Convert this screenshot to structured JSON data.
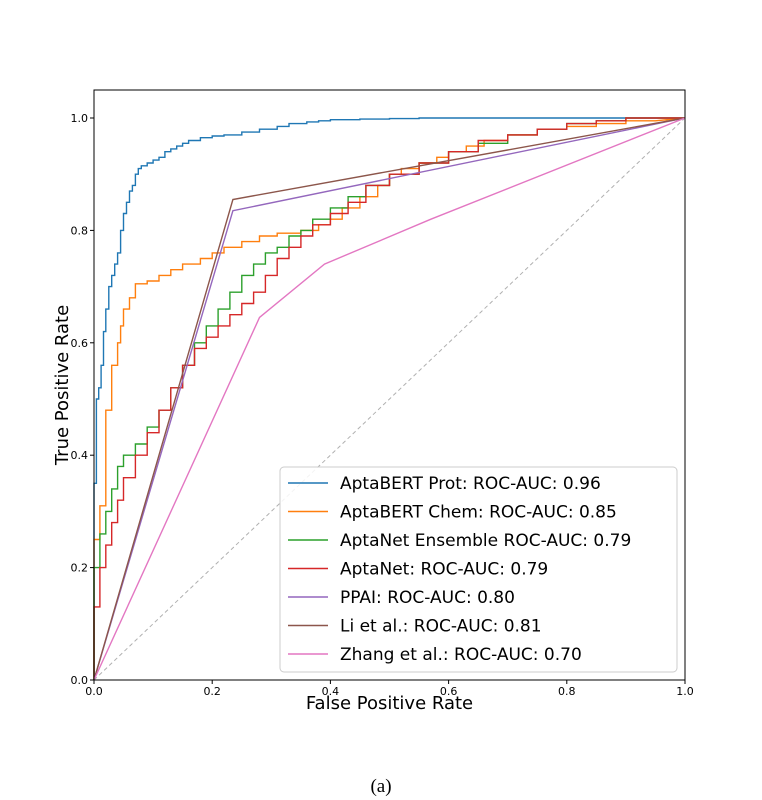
{
  "caption": "(a)",
  "chart_data": {
    "type": "line",
    "title": "",
    "xlabel": "False Positive Rate",
    "ylabel": "True Positive Rate",
    "xlim": [
      0.0,
      1.0
    ],
    "ylim": [
      0.0,
      1.0
    ],
    "xticks": [
      0.0,
      0.2,
      0.4,
      0.6,
      0.8,
      1.0
    ],
    "yticks": [
      0.0,
      0.2,
      0.4,
      0.6,
      0.8,
      1.0
    ],
    "xtick_labels": [
      "0.0",
      "0.2",
      "0.4",
      "0.6",
      "0.8",
      "1.0"
    ],
    "ytick_labels": [
      "0.0",
      "0.2",
      "0.4",
      "0.6",
      "0.8",
      "1.0"
    ],
    "grid": false,
    "legend_position": "bottom-right",
    "diagonal": {
      "name": "chance",
      "color": "#b0b0b0",
      "dashed": true,
      "x": [
        0,
        1
      ],
      "y": [
        0,
        1
      ]
    },
    "series": [
      {
        "name": "AptaBERT Prot: ROC-AUC: 0.96",
        "color": "#1f77b4",
        "x": [
          0,
          0,
          0.004,
          0.004,
          0.008,
          0.008,
          0.012,
          0.012,
          0.016,
          0.016,
          0.02,
          0.02,
          0.025,
          0.025,
          0.03,
          0.03,
          0.035,
          0.035,
          0.04,
          0.04,
          0.045,
          0.045,
          0.05,
          0.05,
          0.055,
          0.055,
          0.06,
          0.06,
          0.065,
          0.065,
          0.07,
          0.07,
          0.075,
          0.075,
          0.08,
          0.08,
          0.09,
          0.09,
          0.1,
          0.1,
          0.11,
          0.11,
          0.12,
          0.12,
          0.13,
          0.13,
          0.14,
          0.14,
          0.15,
          0.15,
          0.16,
          0.16,
          0.18,
          0.18,
          0.2,
          0.2,
          0.22,
          0.22,
          0.25,
          0.25,
          0.28,
          0.28,
          0.31,
          0.31,
          0.33,
          0.33,
          0.36,
          0.36,
          0.38,
          0.38,
          0.4,
          0.4,
          0.45,
          0.45,
          0.5,
          0.5,
          0.55,
          0.55,
          0.6,
          0.6,
          0.7,
          0.7,
          0.8,
          0.8,
          0.9,
          0.9,
          1.0
        ],
        "y": [
          0,
          0.35,
          0.35,
          0.5,
          0.5,
          0.52,
          0.52,
          0.56,
          0.56,
          0.62,
          0.62,
          0.66,
          0.66,
          0.7,
          0.7,
          0.72,
          0.72,
          0.74,
          0.74,
          0.76,
          0.76,
          0.8,
          0.8,
          0.83,
          0.83,
          0.85,
          0.85,
          0.87,
          0.87,
          0.88,
          0.88,
          0.9,
          0.9,
          0.91,
          0.91,
          0.915,
          0.915,
          0.92,
          0.92,
          0.925,
          0.925,
          0.93,
          0.93,
          0.94,
          0.94,
          0.945,
          0.945,
          0.95,
          0.95,
          0.955,
          0.955,
          0.96,
          0.96,
          0.965,
          0.965,
          0.968,
          0.968,
          0.97,
          0.97,
          0.975,
          0.975,
          0.98,
          0.98,
          0.985,
          0.985,
          0.99,
          0.99,
          0.993,
          0.993,
          0.995,
          0.995,
          0.997,
          0.997,
          0.998,
          0.998,
          0.999,
          0.999,
          1.0,
          1.0,
          1.0,
          1.0,
          1.0,
          1.0,
          1.0,
          1.0,
          1.0,
          1.0
        ]
      },
      {
        "name": "AptaBERT Chem: ROC-AUC: 0.85",
        "color": "#ff7f0e",
        "x": [
          0,
          0,
          0.01,
          0.01,
          0.02,
          0.02,
          0.03,
          0.03,
          0.04,
          0.04,
          0.045,
          0.045,
          0.05,
          0.05,
          0.06,
          0.06,
          0.07,
          0.07,
          0.09,
          0.09,
          0.11,
          0.11,
          0.13,
          0.13,
          0.15,
          0.15,
          0.18,
          0.18,
          0.2,
          0.2,
          0.22,
          0.22,
          0.25,
          0.25,
          0.28,
          0.28,
          0.31,
          0.31,
          0.35,
          0.35,
          0.38,
          0.38,
          0.4,
          0.4,
          0.42,
          0.42,
          0.45,
          0.45,
          0.48,
          0.48,
          0.5,
          0.5,
          0.52,
          0.52,
          0.55,
          0.55,
          0.58,
          0.58,
          0.6,
          0.6,
          0.63,
          0.63,
          0.66,
          0.66,
          0.7,
          0.7,
          0.75,
          0.75,
          0.8,
          0.8,
          0.85,
          0.85,
          0.9,
          0.9,
          0.95,
          1.0
        ],
        "y": [
          0,
          0.25,
          0.25,
          0.31,
          0.31,
          0.48,
          0.48,
          0.56,
          0.56,
          0.6,
          0.6,
          0.63,
          0.63,
          0.66,
          0.66,
          0.68,
          0.68,
          0.705,
          0.705,
          0.71,
          0.71,
          0.72,
          0.72,
          0.73,
          0.73,
          0.74,
          0.74,
          0.75,
          0.75,
          0.76,
          0.76,
          0.77,
          0.77,
          0.78,
          0.78,
          0.79,
          0.79,
          0.795,
          0.795,
          0.8,
          0.8,
          0.81,
          0.81,
          0.82,
          0.82,
          0.84,
          0.84,
          0.86,
          0.86,
          0.88,
          0.88,
          0.9,
          0.9,
          0.91,
          0.91,
          0.92,
          0.92,
          0.93,
          0.93,
          0.94,
          0.94,
          0.95,
          0.95,
          0.96,
          0.96,
          0.97,
          0.97,
          0.98,
          0.98,
          0.985,
          0.985,
          0.99,
          0.99,
          0.995,
          0.995,
          1.0
        ]
      },
      {
        "name": "AptaNet Ensemble ROC-AUC: 0.79",
        "color": "#2ca02c",
        "x": [
          0,
          0,
          0.01,
          0.01,
          0.02,
          0.02,
          0.03,
          0.03,
          0.04,
          0.04,
          0.05,
          0.05,
          0.07,
          0.07,
          0.09,
          0.09,
          0.11,
          0.11,
          0.13,
          0.13,
          0.15,
          0.15,
          0.17,
          0.17,
          0.19,
          0.19,
          0.21,
          0.21,
          0.23,
          0.23,
          0.25,
          0.25,
          0.27,
          0.27,
          0.29,
          0.29,
          0.31,
          0.31,
          0.33,
          0.33,
          0.35,
          0.35,
          0.37,
          0.37,
          0.4,
          0.4,
          0.43,
          0.43,
          0.46,
          0.46,
          0.5,
          0.5,
          0.55,
          0.55,
          0.6,
          0.6,
          0.65,
          0.65,
          0.7,
          0.7,
          0.75,
          0.75,
          0.8,
          0.8,
          0.85,
          0.85,
          0.9,
          0.9,
          0.95,
          0.95,
          1.0
        ],
        "y": [
          0,
          0.2,
          0.2,
          0.26,
          0.26,
          0.3,
          0.3,
          0.34,
          0.34,
          0.38,
          0.38,
          0.4,
          0.4,
          0.42,
          0.42,
          0.45,
          0.45,
          0.48,
          0.48,
          0.52,
          0.52,
          0.56,
          0.56,
          0.6,
          0.6,
          0.63,
          0.63,
          0.66,
          0.66,
          0.69,
          0.69,
          0.72,
          0.72,
          0.74,
          0.74,
          0.76,
          0.76,
          0.77,
          0.77,
          0.79,
          0.79,
          0.8,
          0.8,
          0.82,
          0.82,
          0.84,
          0.84,
          0.86,
          0.86,
          0.88,
          0.88,
          0.9,
          0.9,
          0.92,
          0.92,
          0.94,
          0.94,
          0.955,
          0.955,
          0.97,
          0.97,
          0.98,
          0.98,
          0.99,
          0.99,
          0.995,
          0.995,
          1.0,
          1.0,
          1.0,
          1.0
        ]
      },
      {
        "name": "AptaNet: ROC-AUC: 0.79",
        "color": "#d62728",
        "x": [
          0,
          0,
          0.01,
          0.01,
          0.02,
          0.02,
          0.03,
          0.03,
          0.04,
          0.04,
          0.05,
          0.05,
          0.07,
          0.07,
          0.09,
          0.09,
          0.11,
          0.11,
          0.13,
          0.13,
          0.15,
          0.15,
          0.17,
          0.17,
          0.19,
          0.19,
          0.21,
          0.21,
          0.23,
          0.23,
          0.25,
          0.25,
          0.27,
          0.27,
          0.29,
          0.29,
          0.31,
          0.31,
          0.33,
          0.33,
          0.35,
          0.35,
          0.37,
          0.37,
          0.4,
          0.4,
          0.43,
          0.43,
          0.46,
          0.46,
          0.5,
          0.5,
          0.55,
          0.55,
          0.6,
          0.6,
          0.65,
          0.65,
          0.7,
          0.7,
          0.75,
          0.75,
          0.8,
          0.8,
          0.85,
          0.85,
          0.9,
          0.9,
          0.95,
          0.95,
          1.0
        ],
        "y": [
          0,
          0.13,
          0.13,
          0.2,
          0.2,
          0.24,
          0.24,
          0.28,
          0.28,
          0.32,
          0.32,
          0.36,
          0.36,
          0.4,
          0.4,
          0.44,
          0.44,
          0.48,
          0.48,
          0.52,
          0.52,
          0.56,
          0.56,
          0.59,
          0.59,
          0.61,
          0.61,
          0.63,
          0.63,
          0.65,
          0.65,
          0.67,
          0.67,
          0.69,
          0.69,
          0.72,
          0.72,
          0.75,
          0.75,
          0.77,
          0.77,
          0.79,
          0.79,
          0.81,
          0.81,
          0.83,
          0.83,
          0.85,
          0.85,
          0.88,
          0.88,
          0.9,
          0.9,
          0.92,
          0.92,
          0.94,
          0.94,
          0.96,
          0.96,
          0.97,
          0.97,
          0.98,
          0.98,
          0.99,
          0.99,
          0.995,
          0.995,
          1.0,
          1.0,
          1.0,
          1.0
        ]
      },
      {
        "name": "PPAI: ROC-AUC: 0.80",
        "color": "#9467bd",
        "x": [
          0,
          0.235,
          1.0
        ],
        "y": [
          0,
          0.835,
          1.0
        ]
      },
      {
        "name": "Li et al.: ROC-AUC: 0.81",
        "color": "#8c564b",
        "x": [
          0,
          0.235,
          1.0
        ],
        "y": [
          0,
          0.855,
          1.0
        ]
      },
      {
        "name": "Zhang et al.: ROC-AUC: 0.70",
        "color": "#e377c2",
        "x": [
          0,
          0.28,
          0.39,
          0.57,
          1.0
        ],
        "y": [
          0,
          0.645,
          0.74,
          0.82,
          1.0
        ]
      }
    ]
  }
}
